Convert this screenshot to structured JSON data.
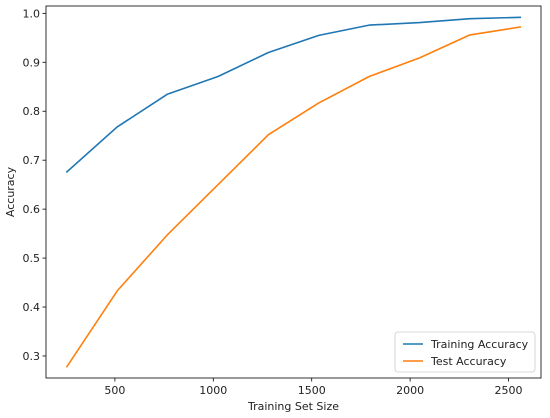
{
  "chart_data": {
    "type": "line",
    "title": "",
    "xlabel": "Training Set Size",
    "ylabel": "Accuracy",
    "xlim": [
      150,
      2665
    ],
    "ylim": [
      0.255,
      1.015
    ],
    "xticks": [
      500,
      1000,
      1500,
      2000,
      2500
    ],
    "yticks": [
      0.3,
      0.4,
      0.5,
      0.6,
      0.7,
      0.8,
      0.9,
      1.0
    ],
    "xtick_labels": [
      "500",
      "1000",
      "1500",
      "2000",
      "2500"
    ],
    "ytick_labels": [
      "0.3",
      "0.4",
      "0.5",
      "0.6",
      "0.7",
      "0.8",
      "0.9",
      "1.0"
    ],
    "grid": false,
    "legend_position": "bottom-right",
    "x": [
      256,
      512,
      768,
      1024,
      1280,
      1536,
      1792,
      2048,
      2304,
      2560
    ],
    "series": [
      {
        "name": "Training Accuracy",
        "color": "#1f77b4",
        "values": [
          0.676,
          0.768,
          0.835,
          0.871,
          0.92,
          0.955,
          0.976,
          0.981,
          0.989,
          0.992
        ]
      },
      {
        "name": "Test Accuracy",
        "color": "#ff7f0e",
        "values": [
          0.278,
          0.433,
          0.548,
          0.65,
          0.752,
          0.817,
          0.871,
          0.909,
          0.956,
          0.972
        ]
      }
    ]
  }
}
